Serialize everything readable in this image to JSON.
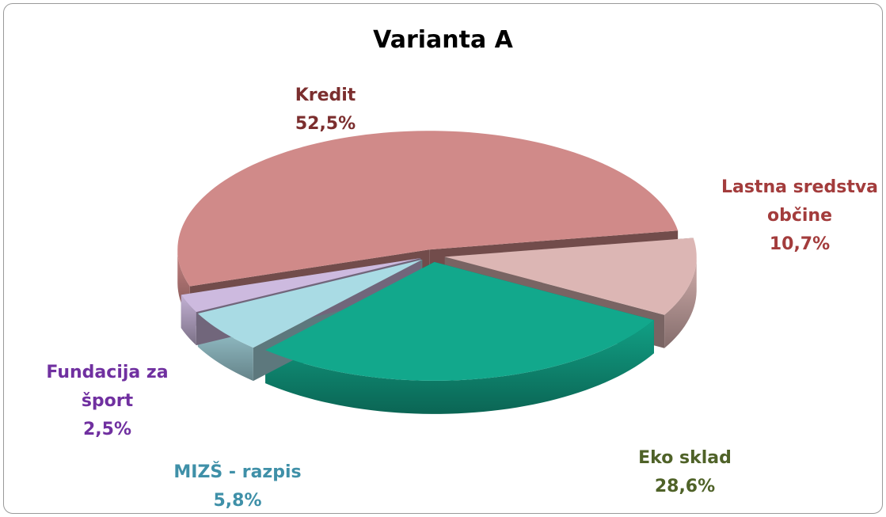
{
  "chart_data": {
    "type": "pie",
    "title": "Varianta A",
    "categories": [
      "Kredit",
      "Lastna sredstva občine",
      "Eko sklad",
      "MIZŠ - razpis",
      "Fundacija za šport"
    ],
    "values": [
      52.5,
      10.7,
      28.6,
      5.8,
      2.5
    ],
    "value_labels": [
      "52,5%",
      "10,7%",
      "28,6%",
      "5,8%",
      "2,5%"
    ],
    "colors": [
      "#d08a89",
      "#dcb6b4",
      "#12a88c",
      "#a9dbe4",
      "#cdbadf"
    ],
    "label_colors": [
      "#7b2e2e",
      "#a33c3c",
      "#4f6228",
      "#3f90a8",
      "#7030a0"
    ]
  }
}
